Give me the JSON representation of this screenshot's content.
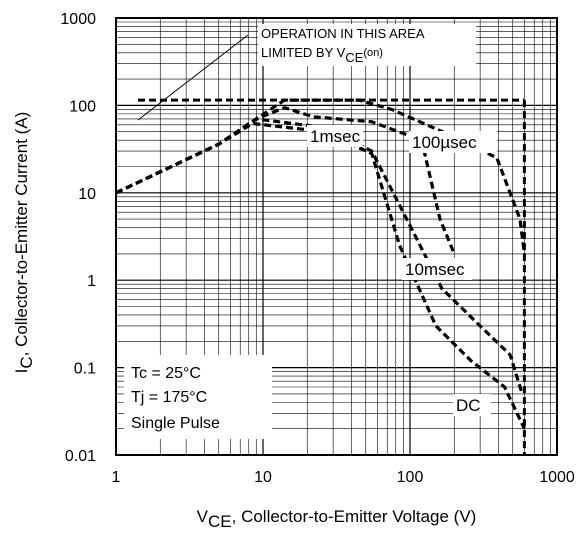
{
  "chart_data": {
    "type": "line",
    "xscale": "log",
    "yscale": "log",
    "xlim": [
      1,
      1000
    ],
    "ylim": [
      0.01,
      1000
    ],
    "grid": true,
    "x_ticks": [
      "1",
      "10",
      "100",
      "1000"
    ],
    "y_ticks": [
      "1000",
      "100",
      "10",
      "1",
      "0.1",
      "0.01"
    ],
    "xlabel": {
      "main": "V",
      "sub": "CE",
      "rest": ", Collector-to-Emitter Voltage (V)"
    },
    "ylabel": {
      "main": "I",
      "sub": "C",
      "rest": ", Collector-to-Emitter Current (A)"
    },
    "annotation": {
      "line1": "OPERATION IN THIS AREA",
      "line2_main": "LIMITED BY V",
      "line2_sub": "CE",
      "line2_tail": "(on)"
    },
    "conditions": [
      "Tc = 25°C",
      "Tj = 175°C",
      "Single Pulse"
    ],
    "limits": {
      "current_A": 115,
      "voltage_V": 600
    },
    "series": [
      {
        "name": "100µsec",
        "x": [
          1,
          5,
          9,
          14,
          45,
          75,
          130,
          240,
          390,
          560,
          600
        ],
        "y": [
          10,
          36,
          70,
          115,
          115,
          90,
          60,
          38,
          25,
          5,
          2
        ]
      },
      {
        "name": "1msec",
        "x": [
          1,
          5,
          9,
          14,
          22,
          55,
          120,
          160,
          200
        ],
        "y": [
          10,
          36,
          70,
          94,
          74,
          65,
          40,
          5,
          2
        ]
      },
      {
        "name": "10msec",
        "x": [
          1,
          5,
          9,
          28,
          55,
          95,
          165,
          300,
          480,
          580
        ],
        "y": [
          10,
          36,
          70,
          55,
          30,
          5,
          0.8,
          0.3,
          0.14,
          0.05
        ]
      },
      {
        "name": "DC",
        "x": [
          1,
          5,
          8.5,
          26,
          55,
          85,
          150,
          260,
          440,
          600
        ],
        "y": [
          10,
          36,
          62,
          50,
          28,
          2.5,
          0.3,
          0.12,
          0.06,
          0.02
        ]
      }
    ]
  }
}
